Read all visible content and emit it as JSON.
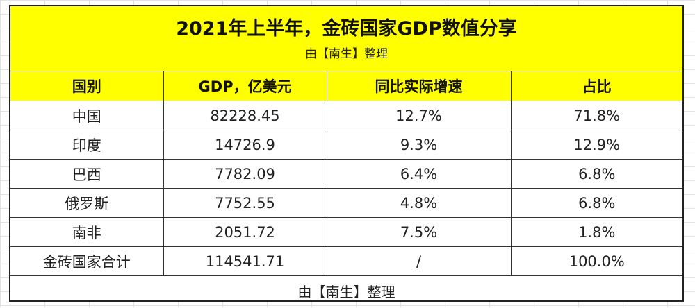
{
  "title": "2021年上半年，金砖国家GDP数值分享",
  "subtitle": "由【南生】整理",
  "columns": [
    "国别",
    "GDP，亿美元",
    "同比实际增速",
    "占比"
  ],
  "rows": [
    {
      "country": "中国",
      "gdp": "82228.45",
      "growth": "12.7%",
      "share": "71.8%"
    },
    {
      "country": "印度",
      "gdp": "14726.9",
      "growth": "9.3%",
      "share": "12.9%"
    },
    {
      "country": "巴西",
      "gdp": "7782.09",
      "growth": "6.4%",
      "share": "6.8%"
    },
    {
      "country": "俄罗斯",
      "gdp": "7752.55",
      "growth": "4.8%",
      "share": "6.8%"
    },
    {
      "country": "南非",
      "gdp": "2051.72",
      "growth": "7.5%",
      "share": "1.8%"
    },
    {
      "country": "金砖国家合计",
      "gdp": "114541.71",
      "growth": "/",
      "share": "100.0%"
    }
  ],
  "footer": "由【南生】整理",
  "colors": {
    "header_fill": "#ffff00",
    "border": "#333333"
  }
}
